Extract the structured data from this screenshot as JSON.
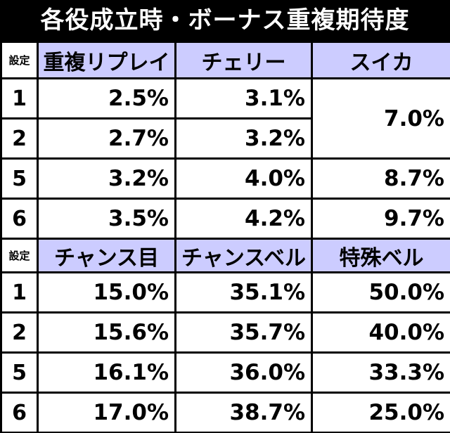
{
  "title": "各役成立時・ボーナス重複期待度",
  "table1": {
    "header": [
      "設定",
      "重複リプレイ",
      "チェリー",
      "スイカ"
    ],
    "rows": [
      [
        "1",
        "2.5%",
        "3.1%",
        "7.0%"
      ],
      [
        "2",
        "2.7%",
        "3.2%"
      ],
      [
        "5",
        "3.2%",
        "4.0%",
        "8.7%"
      ],
      [
        "6",
        "3.5%",
        "4.2%",
        "9.7%"
      ]
    ]
  },
  "table2": {
    "header": [
      "設定",
      "チャンス目",
      "チャンスベル",
      "特殊ベル"
    ],
    "rows": [
      [
        "1",
        "15.0%",
        "35.1%",
        "50.0%"
      ],
      [
        "2",
        "15.6%",
        "35.7%",
        "40.0%"
      ],
      [
        "5",
        "16.1%",
        "36.0%",
        "33.3%"
      ],
      [
        "6",
        "17.0%",
        "38.7%",
        "25.0%"
      ]
    ]
  }
}
